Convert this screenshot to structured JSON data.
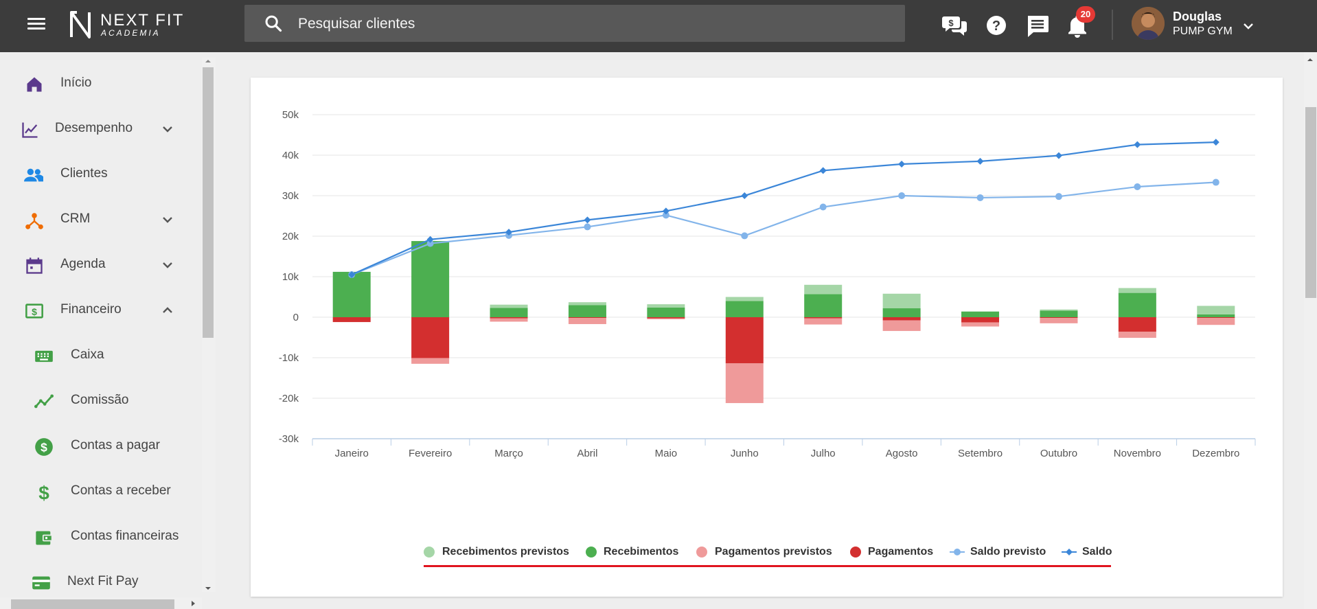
{
  "header": {
    "logo_title": "NEXT FIT",
    "logo_subtitle": "ACADEMIA",
    "search_placeholder": "Pesquisar clientes",
    "notifications_count": "20",
    "user_name": "Douglas",
    "user_gym": "PUMP GYM"
  },
  "sidebar": {
    "items": [
      {
        "label": "Início",
        "icon": "home-icon",
        "color": "#5b3a8c"
      },
      {
        "label": "Desempenho",
        "icon": "trending-icon",
        "color": "#5b3a8c"
      },
      {
        "label": "Clientes",
        "icon": "people-icon",
        "color": "#1e88e5"
      },
      {
        "label": "CRM",
        "icon": "crm-icon",
        "color": "#ef6c00"
      },
      {
        "label": "Agenda",
        "icon": "calendar-icon",
        "color": "#5b3a8c"
      },
      {
        "label": "Financeiro",
        "icon": "money-icon",
        "color": "#43a047"
      },
      {
        "label": "Caixa",
        "icon": "keyboard-icon",
        "color": "#43a047"
      },
      {
        "label": "Comissão",
        "icon": "chart-line-icon",
        "color": "#43a047"
      },
      {
        "label": "Contas a pagar",
        "icon": "dollar-circle-icon",
        "color": "#43a047"
      },
      {
        "label": "Contas a receber",
        "icon": "dollar-icon",
        "color": "#43a047"
      },
      {
        "label": "Contas financeiras",
        "icon": "wallet-icon",
        "color": "#43a047"
      },
      {
        "label": "Next Fit Pay",
        "icon": "card-icon",
        "color": "#43a047"
      }
    ]
  },
  "chart_data": {
    "type": "bar",
    "categories": [
      "Janeiro",
      "Fevereiro",
      "Março",
      "Abril",
      "Maio",
      "Junho",
      "Julho",
      "Agosto",
      "Setembro",
      "Outubro",
      "Novembro",
      "Dezembro"
    ],
    "ylim": [
      -30000,
      50000
    ],
    "yticks": [
      {
        "value": 50000,
        "label": "50k"
      },
      {
        "value": 40000,
        "label": "40k"
      },
      {
        "value": 30000,
        "label": "30k"
      },
      {
        "value": 20000,
        "label": "20k"
      },
      {
        "value": 10000,
        "label": "10k"
      },
      {
        "value": 0,
        "label": "0"
      },
      {
        "value": -10000,
        "label": "-10k"
      },
      {
        "value": -20000,
        "label": "-20k"
      },
      {
        "value": -30000,
        "label": "-30k"
      }
    ],
    "grid": true,
    "legend_position": "bottom",
    "series": [
      {
        "name": "Recebimentos previstos",
        "kind": "bar",
        "color": "#a5d6a7",
        "values": [
          0,
          0,
          800,
          700,
          800,
          1000,
          2300,
          3600,
          0,
          300,
          1200,
          2100
        ]
      },
      {
        "name": "Recebimentos",
        "kind": "bar",
        "color": "#4caf50",
        "values": [
          11200,
          18800,
          2300,
          3000,
          2400,
          4000,
          5700,
          2200,
          1400,
          1600,
          6000,
          700
        ]
      },
      {
        "name": "Pagamentos previstos",
        "kind": "bar",
        "color": "#ef9a9a",
        "values": [
          0,
          -1400,
          -800,
          -1500,
          -200,
          -9800,
          -1500,
          -2600,
          -1000,
          -1300,
          -1500,
          -1700
        ]
      },
      {
        "name": "Pagamentos",
        "kind": "bar",
        "color": "#d32f2f",
        "values": [
          -1200,
          -10100,
          -300,
          -200,
          -300,
          -11400,
          -300,
          -800,
          -1300,
          -200,
          -3600,
          -200
        ]
      },
      {
        "name": "Saldo previsto",
        "kind": "line",
        "color": "#82b4ea",
        "marker": "circle",
        "values": [
          10500,
          18200,
          20200,
          22300,
          25200,
          20100,
          27200,
          30000,
          29500,
          29800,
          32200,
          33300
        ]
      },
      {
        "name": "Saldo",
        "kind": "line",
        "color": "#3b86d8",
        "marker": "diamond",
        "values": [
          10500,
          19200,
          21000,
          24000,
          26200,
          30000,
          36200,
          37800,
          38500,
          39900,
          42600,
          43200
        ]
      }
    ]
  }
}
